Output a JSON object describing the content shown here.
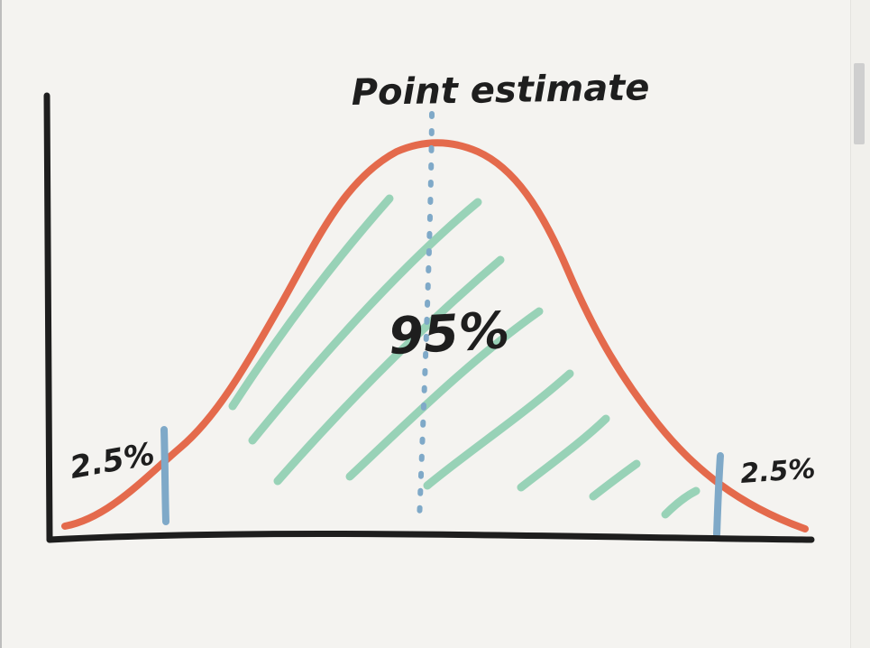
{
  "labels": {
    "point_estimate": "Point estimate",
    "center_pct": "95%",
    "left_tail_pct": "2.5%",
    "right_tail_pct": "2.5%"
  },
  "colors": {
    "background": "#f4f3f0",
    "axes": "#1e1e1e",
    "curve": "#e46a4c",
    "hatch": "#8fcfb1",
    "bounds": "#7fa9c8",
    "midline": "#7fa9c8"
  }
}
